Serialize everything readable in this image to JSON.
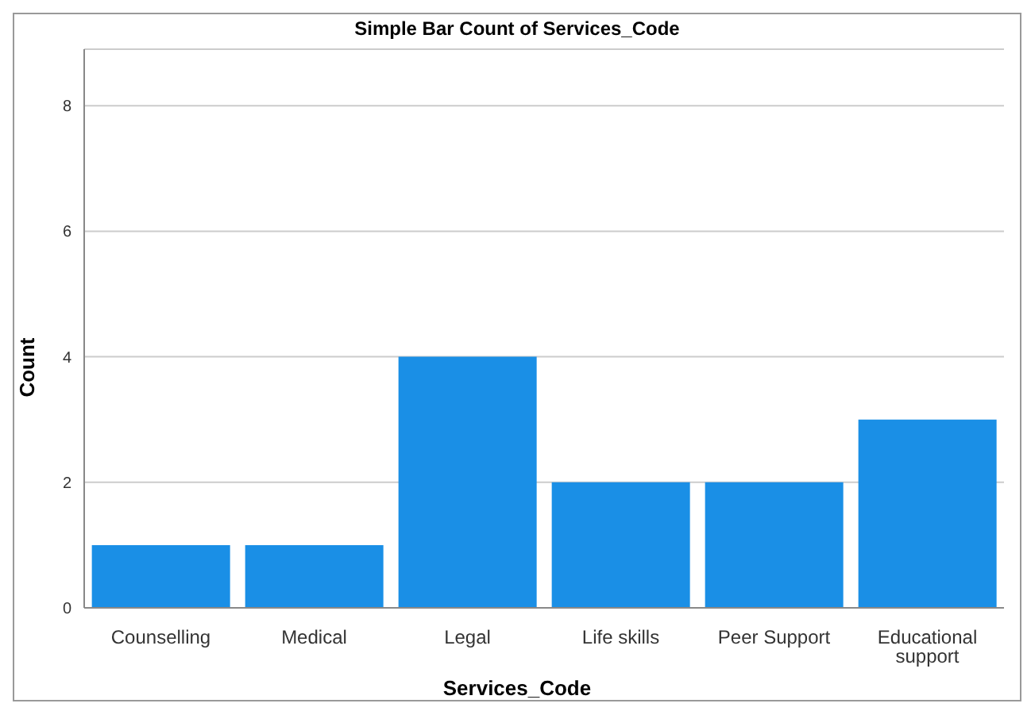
{
  "chart_data": {
    "type": "bar",
    "title": "Simple Bar Count of Services_Code",
    "xlabel": "Services_Code",
    "ylabel": "Count",
    "categories": [
      "Counselling",
      "Medical",
      "Legal",
      "Life skills",
      "Peer Support",
      "Educational support"
    ],
    "values": [
      1,
      1,
      4,
      2,
      2,
      3
    ],
    "color": "#1a8fe6",
    "ylim": [
      0,
      8.9
    ],
    "yticks": [
      0,
      2,
      4,
      6,
      8
    ],
    "grid": "y"
  }
}
